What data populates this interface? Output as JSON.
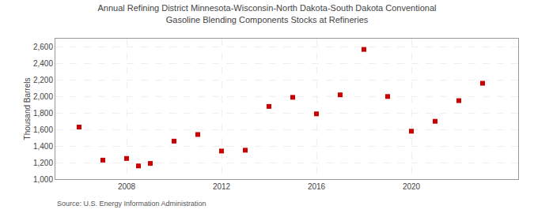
{
  "chart_data": {
    "type": "scatter",
    "title": "Annual Refining District Minnesota-Wisconsin-North Dakota-South Dakota Conventional\nGasoline Blending Components Stocks at Refineries",
    "ylabel": "Thousand Barrels",
    "annotations": [
      "Source: U.S. Energy Information Administration"
    ],
    "x": [
      2006,
      2007,
      2008,
      2008.5,
      2009,
      2010,
      2011,
      2012,
      2013,
      2014,
      2015,
      2016,
      2017,
      2018,
      2019,
      2020,
      2021,
      2022,
      2023
    ],
    "values": [
      1630,
      1230,
      1250,
      1160,
      1190,
      1460,
      1540,
      1340,
      1350,
      1880,
      1990,
      1790,
      2020,
      2570,
      2000,
      1580,
      1700,
      1950,
      2160
    ],
    "color": "#cc0000",
    "marker": "square",
    "xlim": [
      2005.0,
      2024.5
    ],
    "ylim": [
      1000,
      2700
    ],
    "xticks": [
      2008,
      2012,
      2016,
      2020
    ],
    "yticks": [
      {
        "value": 1000,
        "label": "1,000"
      },
      {
        "value": 1200,
        "label": "1,200"
      },
      {
        "value": 1400,
        "label": "1,400"
      },
      {
        "value": 1600,
        "label": "1,600"
      },
      {
        "value": 1800,
        "label": "1,800"
      },
      {
        "value": 2000,
        "label": "2,000"
      },
      {
        "value": 2200,
        "label": "2,200"
      },
      {
        "value": 2400,
        "label": "2,400"
      },
      {
        "value": 2600,
        "label": "2,600"
      }
    ],
    "grid": true
  }
}
